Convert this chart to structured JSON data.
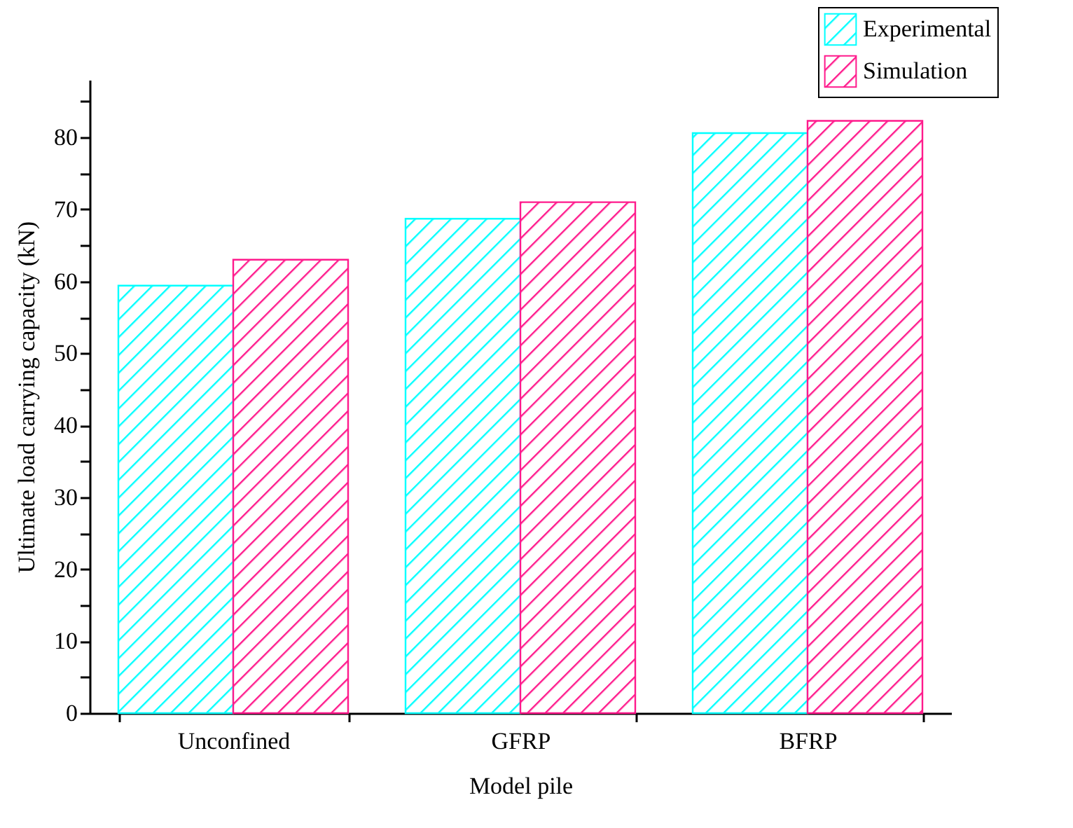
{
  "chart_data": {
    "type": "bar",
    "xlabel": "Model pile",
    "ylabel": "Ultimate load carrying capacity (kN)",
    "categories": [
      "Unconfined",
      "GFRP",
      "BFRP"
    ],
    "series": [
      {
        "name": "Experimental",
        "color": "#00ffff",
        "values": [
          59.4,
          68.7,
          80.6
        ]
      },
      {
        "name": "Simulation",
        "color": "#ff1a8c",
        "values": [
          63.0,
          71.0,
          82.3
        ]
      }
    ],
    "ylim": [
      0,
      88
    ],
    "yticks": [
      0,
      {
        "value": 5,
        "label": null
      },
      10,
      {
        "value": 15,
        "label": null
      },
      20,
      {
        "value": 25,
        "label": null
      },
      30,
      {
        "value": 35,
        "label": null
      },
      40,
      {
        "value": 45,
        "label": null
      },
      50,
      {
        "value": 55,
        "label": null
      },
      60,
      {
        "value": 65,
        "label": null
      },
      70,
      {
        "value": 75,
        "label": null
      },
      80,
      {
        "value": 85,
        "label": null
      }
    ],
    "grid": false,
    "legend": "top right"
  }
}
